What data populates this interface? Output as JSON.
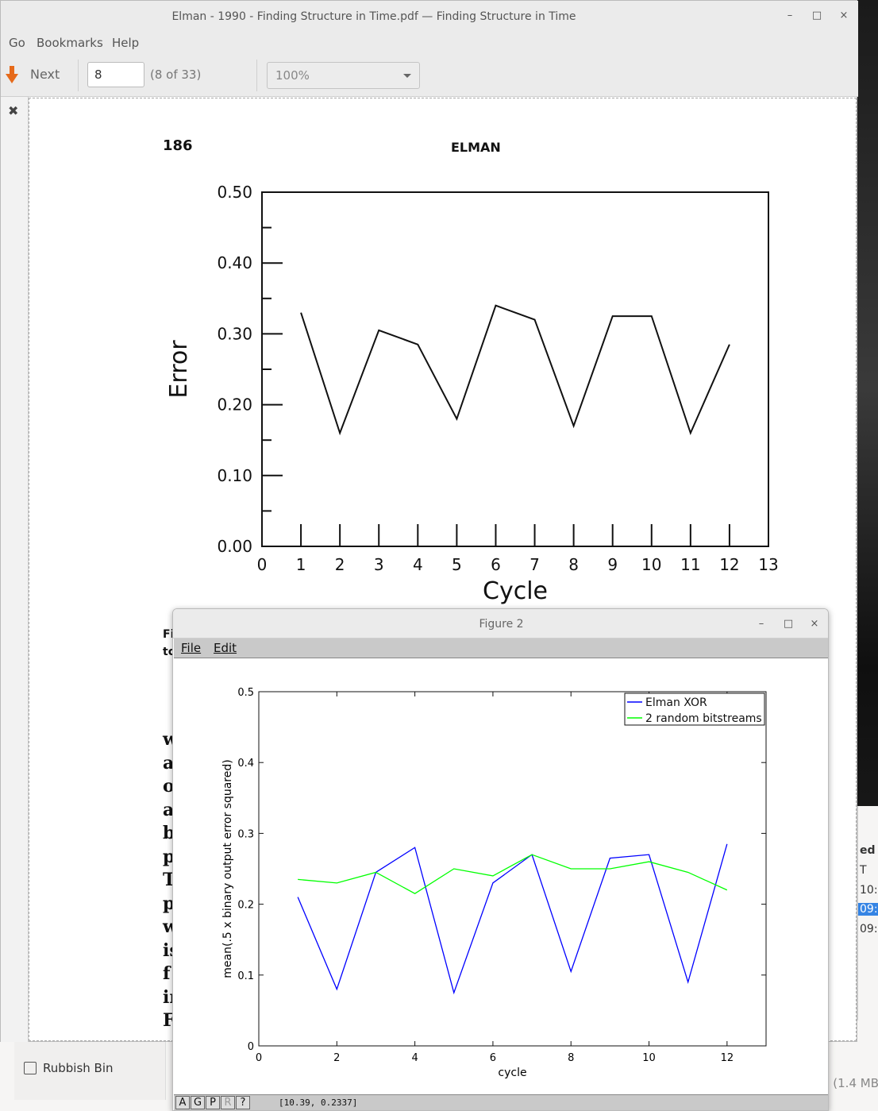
{
  "pdf_window": {
    "title": "Elman - 1990 - Finding Structure in Time.pdf — Finding Structure in Time",
    "menu": [
      "Go",
      "Bookmarks",
      "Help"
    ],
    "toolbar": {
      "next_label": "Next",
      "page_value": "8",
      "page_count": "(8 of 33)",
      "zoom": "100%"
    },
    "window_buttons": {
      "min": "–",
      "max": "□",
      "close": "×"
    },
    "side_close": "✖",
    "page": {
      "page_number": "186",
      "running_header": "ELMAN",
      "caption_fragment": [
        "Fi",
        "tc"
      ],
      "body_line_starts": [
        "w",
        "a",
        "o",
        "a",
        "b",
        "p",
        "T",
        "p",
        "w",
        "is",
        "f",
        "in",
        "F"
      ],
      "scanned_chart": {
        "ylabel": "Error",
        "xlabel": "Cycle",
        "yticks": [
          "0.50",
          "0.40",
          "0.30",
          "0.20",
          "0.10",
          "0.00"
        ],
        "xticks": [
          "0",
          "1",
          "2",
          "3",
          "4",
          "5",
          "6",
          "7",
          "8",
          "9",
          "10",
          "11",
          "12",
          "13"
        ]
      }
    }
  },
  "figure_window": {
    "title": "Figure 2",
    "menu": [
      "File",
      "Edit"
    ],
    "status_buttons": [
      "A",
      "G",
      "P",
      "R",
      "?"
    ],
    "coord_readout": "[10.39, 0.2337]",
    "window_buttons": {
      "min": "–",
      "max": "□",
      "close": "×"
    }
  },
  "files_window": {
    "rubbish_label": "Rubbish Bin",
    "size_text": "d (1.4 MB",
    "right_cells": [
      "ed",
      "T",
      "10:",
      "09:",
      "09:"
    ]
  },
  "chart_data": [
    {
      "type": "line",
      "source": "scanned figure in PDF page",
      "xlabel": "Cycle",
      "ylabel": "Error",
      "xlim": [
        0,
        13
      ],
      "ylim": [
        0,
        0.5
      ],
      "x": [
        1,
        2,
        3,
        4,
        5,
        6,
        7,
        8,
        9,
        10,
        11,
        12
      ],
      "series": [
        {
          "values": [
            0.33,
            0.16,
            0.305,
            0.285,
            0.18,
            0.34,
            0.32,
            0.17,
            0.325,
            0.325,
            0.16,
            0.285
          ]
        }
      ]
    },
    {
      "type": "line",
      "xlabel": "cycle",
      "ylabel": "mean(.5 x binary output error squared)",
      "xlim": [
        0,
        13
      ],
      "ylim": [
        0,
        0.5
      ],
      "xticks": [
        0,
        2,
        4,
        6,
        8,
        10,
        12
      ],
      "yticks": [
        0,
        0.1,
        0.2,
        0.3,
        0.4,
        0.5
      ],
      "legend": "top-right",
      "x": [
        1,
        2,
        3,
        4,
        5,
        6,
        7,
        8,
        9,
        10,
        11,
        12
      ],
      "series": [
        {
          "name": "Elman XOR",
          "color": "#0000ff",
          "values": [
            0.21,
            0.08,
            0.245,
            0.28,
            0.075,
            0.23,
            0.27,
            0.105,
            0.265,
            0.27,
            0.09,
            0.285
          ]
        },
        {
          "name": "2 random bitstreams",
          "color": "#00ff00",
          "values": [
            0.235,
            0.23,
            0.245,
            0.215,
            0.25,
            0.24,
            0.27,
            0.25,
            0.25,
            0.26,
            0.245,
            0.22
          ]
        }
      ]
    }
  ]
}
